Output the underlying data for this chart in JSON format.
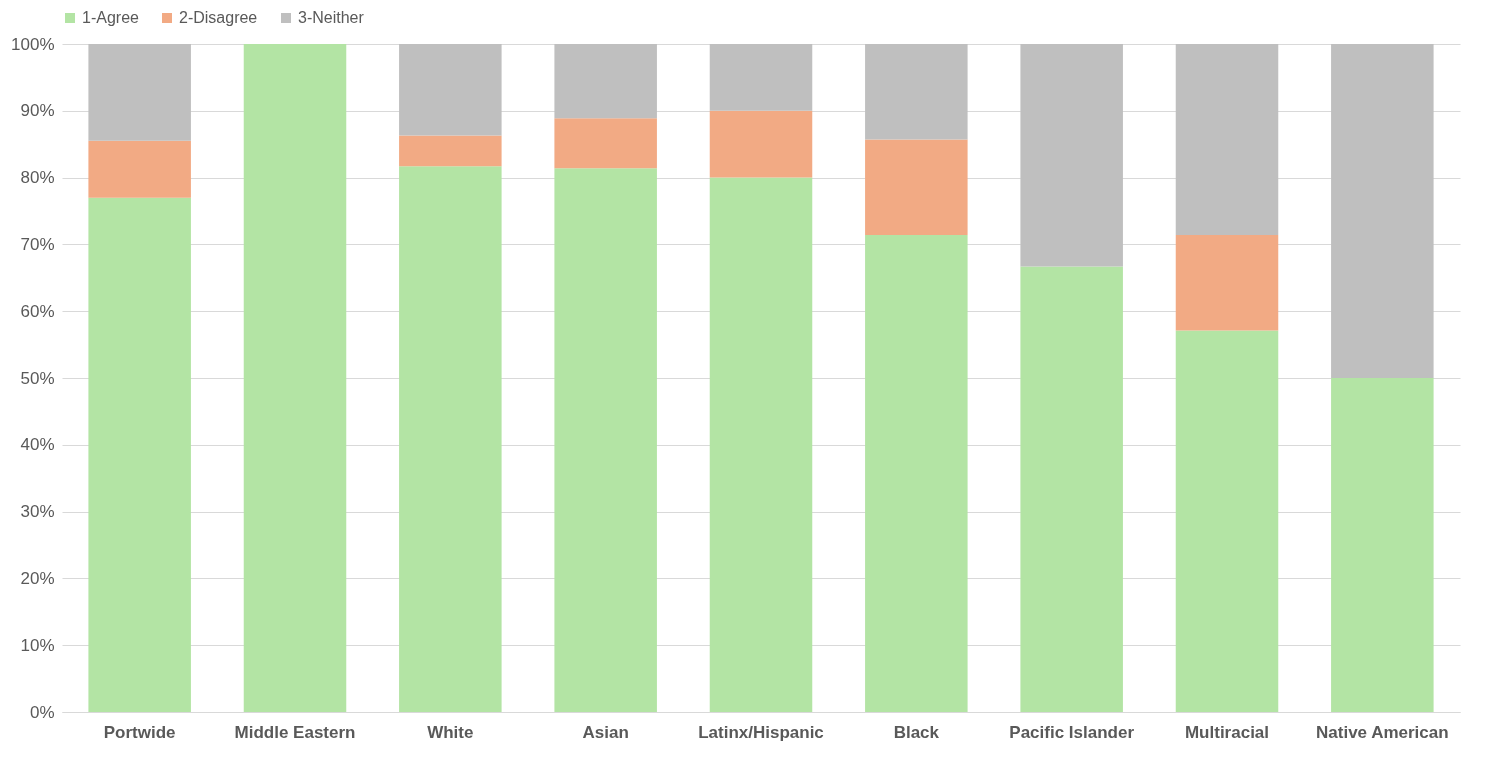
{
  "chart_data": {
    "type": "bar",
    "stacked": true,
    "categories": [
      "Portwide",
      "Middle Eastern",
      "White",
      "Asian",
      "Latinx/Hispanic",
      "Black",
      "Pacific Islander",
      "Multiracial",
      "Native American"
    ],
    "series": [
      {
        "name": "1-Agree",
        "color": "#b3e4a4",
        "values": [
          77,
          100,
          81.7,
          81.4,
          80,
          71.4,
          66.7,
          57.1,
          50
        ]
      },
      {
        "name": "2-Disagree",
        "color": "#f2aa84",
        "values": [
          8.5,
          0,
          4.6,
          7.5,
          10,
          14.3,
          0,
          14.3,
          0
        ]
      },
      {
        "name": "3-Neither",
        "color": "#bfbfbf",
        "values": [
          14.5,
          0,
          13.7,
          11.1,
          10,
          14.3,
          33.3,
          28.6,
          50
        ]
      }
    ],
    "ylim": [
      0,
      100
    ],
    "yticks": [
      {
        "value": 0,
        "label": "0%"
      },
      {
        "value": 10,
        "label": "10%"
      },
      {
        "value": 20,
        "label": "20%"
      },
      {
        "value": 30,
        "label": "30%"
      },
      {
        "value": 40,
        "label": "40%"
      },
      {
        "value": 50,
        "label": "50%"
      },
      {
        "value": 60,
        "label": "60%"
      },
      {
        "value": 70,
        "label": "70%"
      },
      {
        "value": 80,
        "label": "80%"
      },
      {
        "value": 90,
        "label": "90%"
      },
      {
        "value": 100,
        "label": "100%"
      }
    ],
    "grid": "y",
    "legend": "top"
  }
}
